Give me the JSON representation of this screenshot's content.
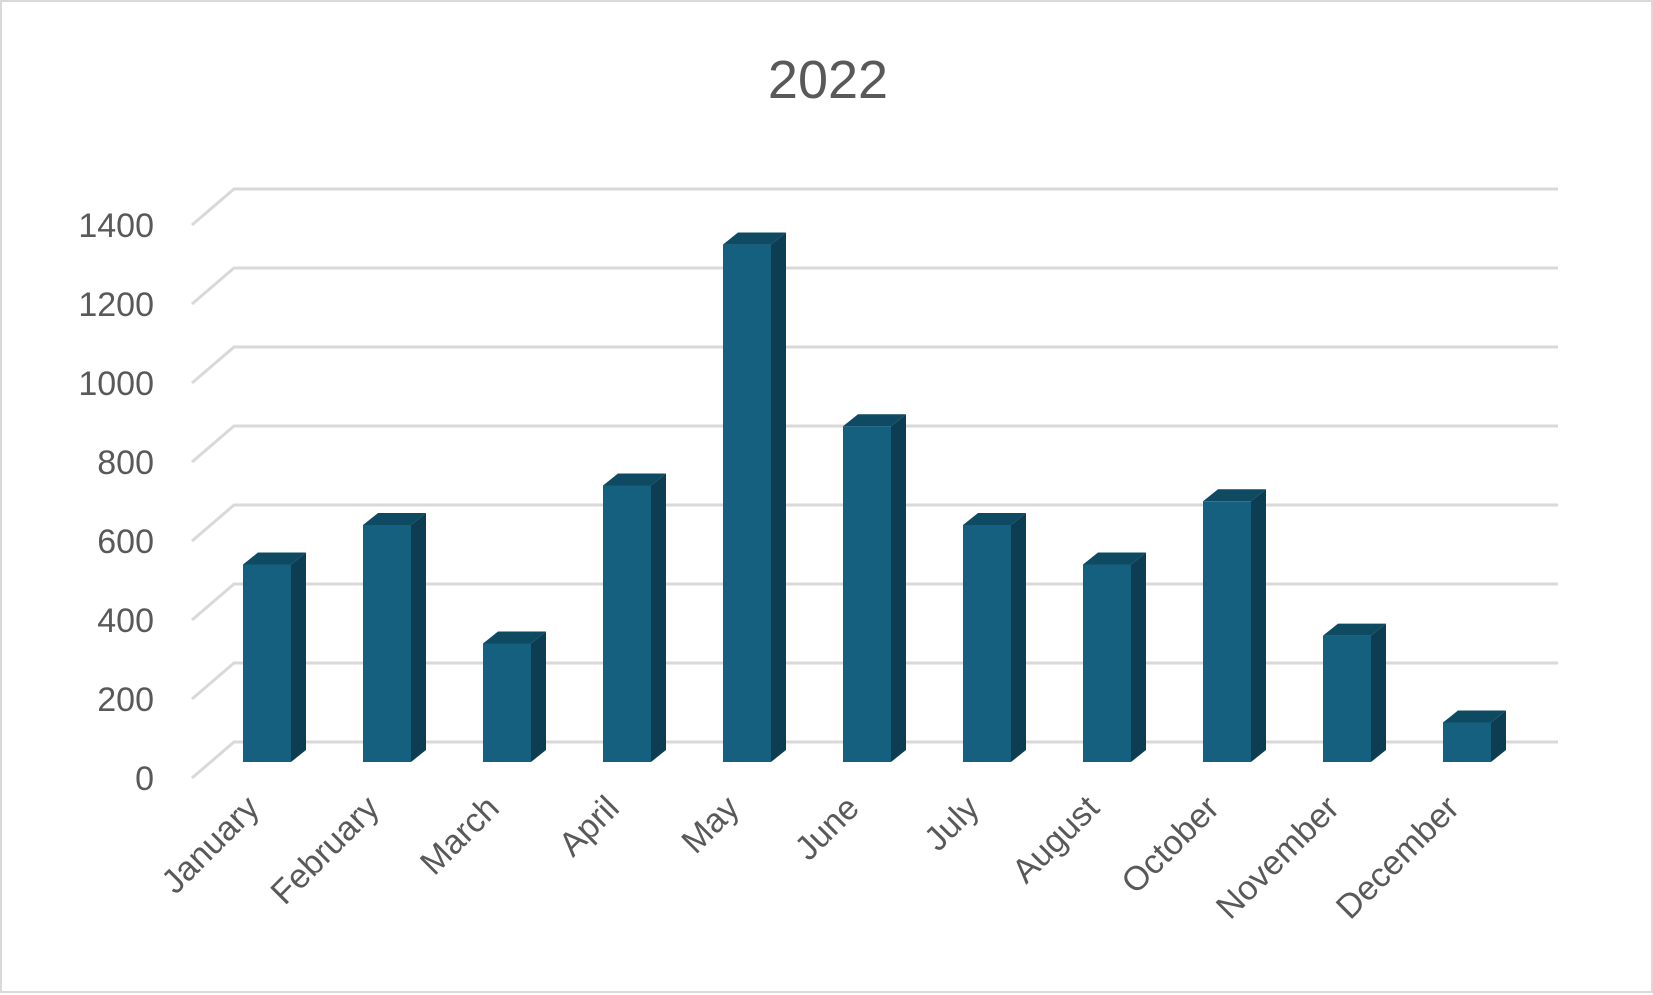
{
  "chart_data": {
    "type": "bar",
    "style": "3d-column",
    "title": "2022",
    "xlabel": "",
    "ylabel": "",
    "categories": [
      "January",
      "February",
      "March",
      "April",
      "May",
      "June",
      "July",
      "August",
      "October",
      "November",
      "December"
    ],
    "values": [
      500,
      600,
      300,
      700,
      1310,
      850,
      600,
      500,
      660,
      320,
      100
    ],
    "ylim": [
      0,
      1400
    ],
    "yticks": [
      "0",
      "200",
      "400",
      "600",
      "800",
      "1000",
      "1200",
      "1400"
    ],
    "grid": true,
    "legend": "none",
    "colors": {
      "bar_front": "#16607f",
      "bar_side": "#0c3d52",
      "bar_top": "#0f4a63",
      "grid": "#d9d9d9",
      "text": "#595959"
    }
  }
}
